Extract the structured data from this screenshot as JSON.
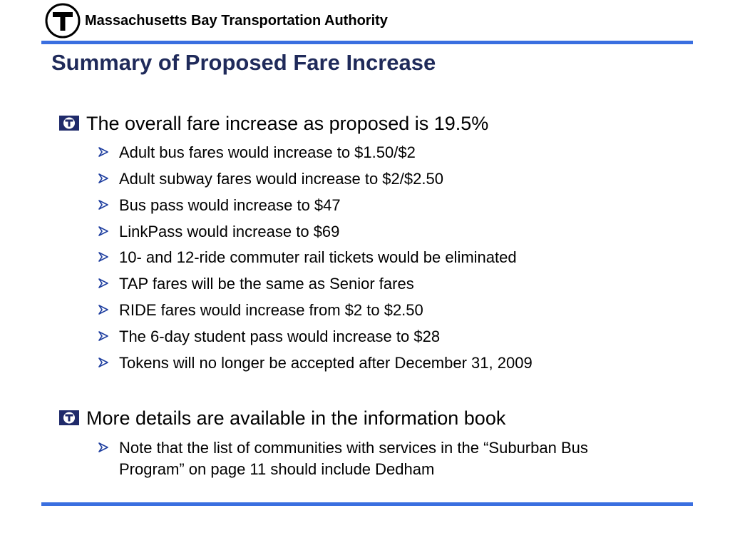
{
  "header": {
    "org_name": "Massachusetts Bay Transportation Authority",
    "logo_icon": "mbta-t-logo-icon"
  },
  "title": "Summary of Proposed Fare Increase",
  "colors": {
    "accent_rule": "#3a6fe0",
    "bullet_box": "#1f2a6a",
    "arrow": "#1f3fa0"
  },
  "sections": [
    {
      "heading": "The overall fare increase as proposed is 19.5%",
      "items": [
        "Adult bus fares would increase to $1.50/$2",
        "Adult subway fares would increase to $2/$2.50",
        "Bus pass would increase to $47",
        "LinkPass would increase to $69",
        "10- and 12-ride commuter rail tickets would be eliminated",
        "TAP fares will be the same as Senior fares",
        "RIDE fares would increase from $2 to $2.50",
        "The 6-day student pass would increase to $28",
        "Tokens will no longer be accepted after December 31, 2009"
      ]
    },
    {
      "heading": "More details are available in the information book",
      "items": [
        "Note that the list of communities with services in the “Suburban Bus Program” on page 11 should include Dedham"
      ]
    }
  ]
}
